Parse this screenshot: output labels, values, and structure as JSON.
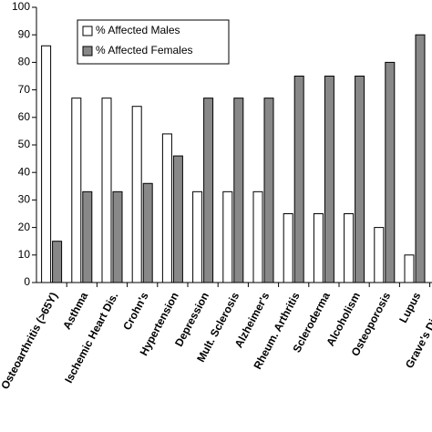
{
  "chart_data": {
    "type": "bar",
    "categories": [
      "Osteoarthritis (>65Y)",
      "Asthma",
      "Ischemic Heart Dis.",
      "Crohn's",
      "Hypertension",
      "Depression",
      "Mult. Sclerosis",
      "Alzheimer's",
      "Rheum. Arthritis",
      "Scleroderma",
      "Alcoholism",
      "Osteoporosis",
      "Lupus",
      "Grave's Disease"
    ],
    "series": [
      {
        "name": "% Affected Males",
        "color": "#ffffff",
        "values": [
          86,
          67,
          67,
          64,
          54,
          33,
          33,
          33,
          25,
          25,
          25,
          20,
          10,
          null
        ]
      },
      {
        "name": "% Affected Females",
        "color": "#888888",
        "values": [
          15,
          33,
          33,
          36,
          46,
          67,
          67,
          67,
          75,
          75,
          75,
          80,
          90,
          null
        ]
      }
    ],
    "ylim": [
      0,
      100
    ],
    "yticks": [
      0,
      10,
      20,
      30,
      40,
      50,
      60,
      70,
      80,
      90,
      100
    ],
    "grid": false
  }
}
